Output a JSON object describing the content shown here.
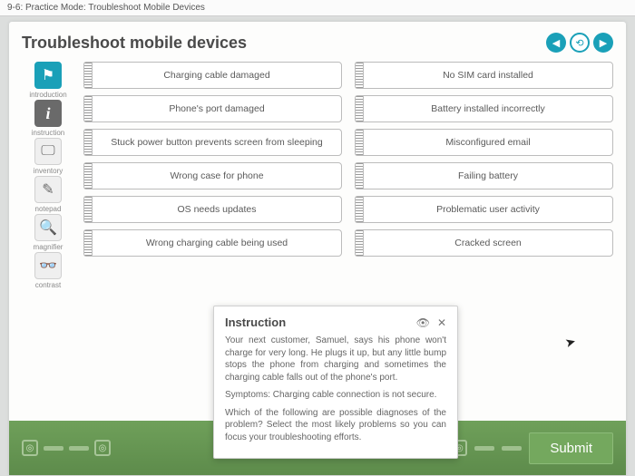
{
  "tab_label": "9-6: Practice Mode: Troubleshoot Mobile Devices",
  "title": "Troubleshoot mobile devices",
  "sidebar": {
    "items": [
      {
        "label": "introduction",
        "glyph": "⚑",
        "cls": "flag"
      },
      {
        "label": "instruction",
        "glyph": "i",
        "cls": "info"
      },
      {
        "label": "inventory",
        "glyph": "🖵",
        "cls": ""
      },
      {
        "label": "notepad",
        "glyph": "✎",
        "cls": ""
      },
      {
        "label": "magnifier",
        "glyph": "🔍",
        "cls": ""
      },
      {
        "label": "contrast",
        "glyph": "👓",
        "cls": ""
      }
    ]
  },
  "options": {
    "left": [
      "Charging cable damaged",
      "Phone's port damaged",
      "Stuck power button prevents screen from sleeping",
      "Wrong case for phone",
      "OS needs updates",
      "Wrong charging cable being used"
    ],
    "right": [
      "No SIM card installed",
      "Battery installed incorrectly",
      "Misconfigured email",
      "Failing battery",
      "Problematic user activity",
      "Cracked screen"
    ]
  },
  "instruction": {
    "heading": "Instruction",
    "p1": "Your next customer, Samuel, says his phone won't charge for very long. He plugs it up, but any little bump stops the phone from charging and sometimes the charging cable falls out of the phone's port.",
    "p2": "Symptoms: Charging cable connection is not secure.",
    "p3": "Which of the following are possible diagnoses of the problem? Select the most likely problems so you can focus your troubleshooting efforts."
  },
  "submit_label": "Submit",
  "colors": {
    "accent": "#1aa0b8",
    "green_bar": "#5d8b4b",
    "submit": "#74a85e"
  }
}
